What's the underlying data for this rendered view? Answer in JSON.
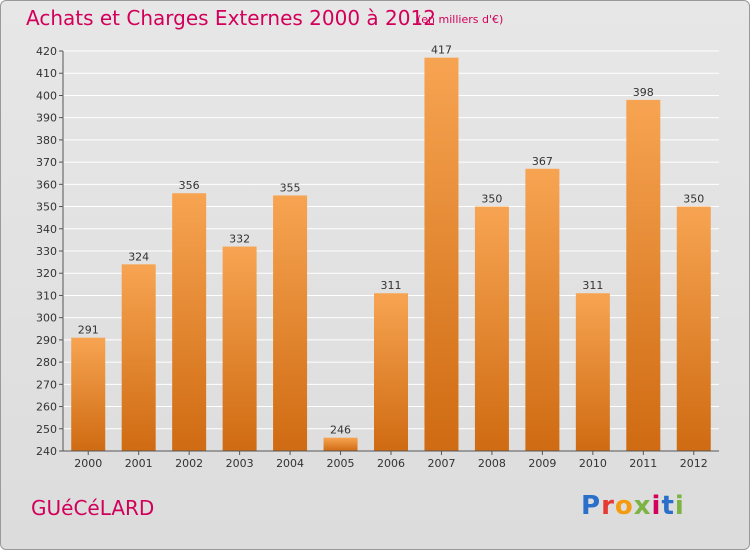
{
  "header": {
    "title": "Achats et Charges Externes 2000 à 2012",
    "subtitle": "(en milliers d'€)"
  },
  "footer": {
    "city": "GUéCéLARD",
    "brand_letters": [
      {
        "ch": "P",
        "color": "#2a6fc9"
      },
      {
        "ch": "r",
        "color": "#e53935"
      },
      {
        "ch": "o",
        "color": "#f39c12"
      },
      {
        "ch": "x",
        "color": "#7cb342"
      },
      {
        "ch": "i",
        "color": "#d2005a"
      },
      {
        "ch": "t",
        "color": "#2a6fc9"
      },
      {
        "ch": "i",
        "color": "#7cb342"
      }
    ]
  },
  "colors": {
    "bar_top": "#f7a452",
    "bar_bottom": "#cf6b12",
    "grid": "#ffffff",
    "axis": "#555555"
  },
  "chart_data": {
    "type": "bar",
    "categories": [
      "2000",
      "2001",
      "2002",
      "2003",
      "2004",
      "2005",
      "2006",
      "2007",
      "2008",
      "2009",
      "2010",
      "2011",
      "2012"
    ],
    "values": [
      291,
      324,
      356,
      332,
      355,
      246,
      311,
      417,
      350,
      367,
      311,
      398,
      350
    ],
    "ylim": [
      240,
      420
    ],
    "ytick_step": 10,
    "grid": true,
    "title": "Achats et Charges Externes 2000 à 2012",
    "subtitle": "(en milliers d'€)"
  }
}
